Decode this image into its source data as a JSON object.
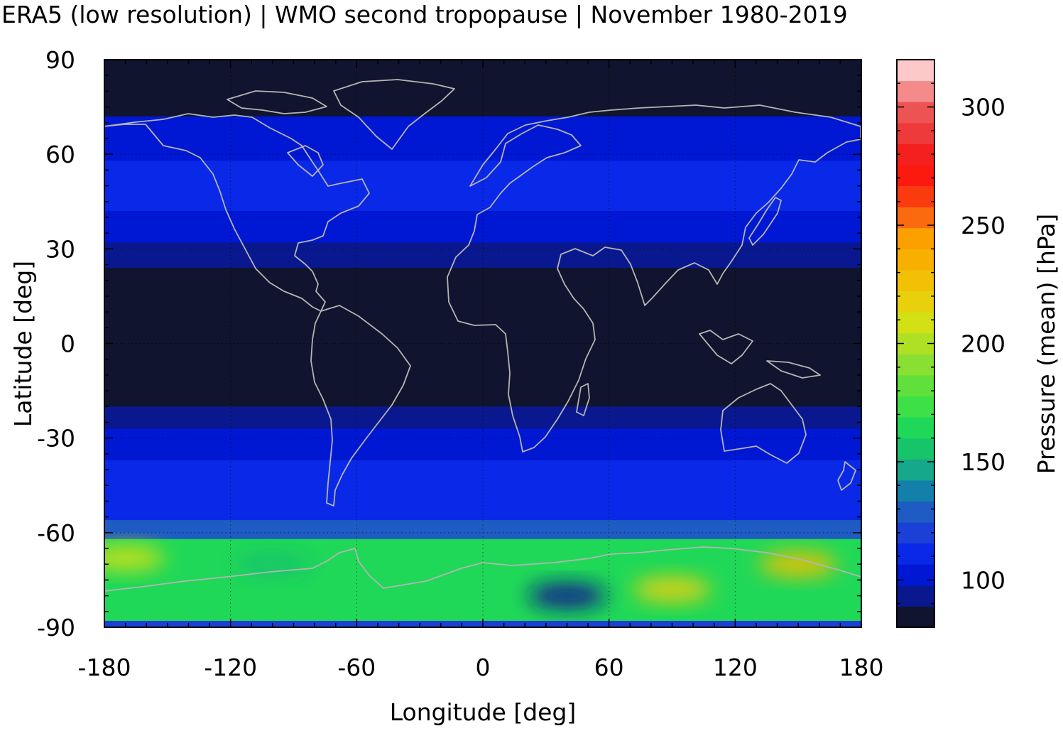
{
  "title": "ERA5 (low resolution) | WMO second tropopause | November 1980-2019",
  "colors": {
    "map_background": "#10142e",
    "coastline": "#b4b4b4",
    "frame": "#000000"
  },
  "chart_data": {
    "type": "heatmap",
    "title": "ERA5 (low resolution) | WMO second tropopause | November 1980-2019",
    "xlabel": "Longitude [deg]",
    "ylabel": "Latitude [deg]",
    "xlim": [
      -180,
      180
    ],
    "ylim": [
      -90,
      90
    ],
    "x_ticks": [
      "-180",
      "-120",
      "-60",
      "0",
      "60",
      "120",
      "180"
    ],
    "y_ticks": [
      "90",
      "60",
      "30",
      "0",
      "-30",
      "-60",
      "-90"
    ],
    "grid": true,
    "x_tick_values": [
      -180,
      -120,
      -60,
      0,
      60,
      120,
      180
    ],
    "y_tick_values": [
      90,
      60,
      30,
      0,
      -30,
      -60,
      -90
    ],
    "colorbar": {
      "label": "Pressure (mean) [hPa]",
      "range": [
        80,
        320
      ],
      "ticks": [
        "100",
        "150",
        "200",
        "250",
        "300"
      ],
      "tick_values": [
        100,
        150,
        200,
        250,
        300
      ],
      "colors": [
        "#10142e",
        "#0a1890",
        "#0018d4",
        "#0a28e8",
        "#1a40d8",
        "#1e5cc4",
        "#1280a8",
        "#16a88a",
        "#18c46a",
        "#20d858",
        "#3ee048",
        "#60e03a",
        "#8ae032",
        "#b0e024",
        "#d2e014",
        "#e8d00c",
        "#f2c004",
        "#f8b000",
        "#fca000",
        "#fc6a10",
        "#fc3a10",
        "#fc1a10",
        "#f42020",
        "#ee3a3a",
        "#ec5454",
        "#f48a8a",
        "#fcc8c8"
      ]
    },
    "field_bands": [
      {
        "lat_range": [
          72,
          90
        ],
        "pressure_hPa": 85
      },
      {
        "lat_range": [
          58,
          72
        ],
        "pressure_hPa": 102
      },
      {
        "lat_range": [
          42,
          58
        ],
        "pressure_hPa": 107
      },
      {
        "lat_range": [
          32,
          42
        ],
        "pressure_hPa": 102
      },
      {
        "lat_range": [
          24,
          32
        ],
        "pressure_hPa": 95
      },
      {
        "lat_range": [
          -20,
          24
        ],
        "pressure_hPa": 85
      },
      {
        "lat_range": [
          -27,
          -20
        ],
        "pressure_hPa": 95
      },
      {
        "lat_range": [
          -37,
          -27
        ],
        "pressure_hPa": 102
      },
      {
        "lat_range": [
          -48,
          -37
        ],
        "pressure_hPa": 107
      },
      {
        "lat_range": [
          -56,
          -48
        ],
        "pressure_hPa": 112
      },
      {
        "lat_range": [
          -62,
          -56
        ],
        "pressure_hPa": 128
      },
      {
        "lat_range": [
          -88,
          -62
        ],
        "pressure_hPa": 160
      },
      {
        "lat_range": [
          -90,
          -88
        ],
        "pressure_hPa": 120
      }
    ],
    "field_maxima": [
      {
        "lon": 150,
        "lat": -70,
        "pressure_hPa": 225
      },
      {
        "lon": 90,
        "lat": -78,
        "pressure_hPa": 215
      },
      {
        "lon": -170,
        "lat": -68,
        "pressure_hPa": 205
      },
      {
        "lon": 40,
        "lat": -80,
        "pressure_hPa": 95
      },
      {
        "lon": -100,
        "lat": -70,
        "pressure_hPa": 155
      }
    ]
  }
}
